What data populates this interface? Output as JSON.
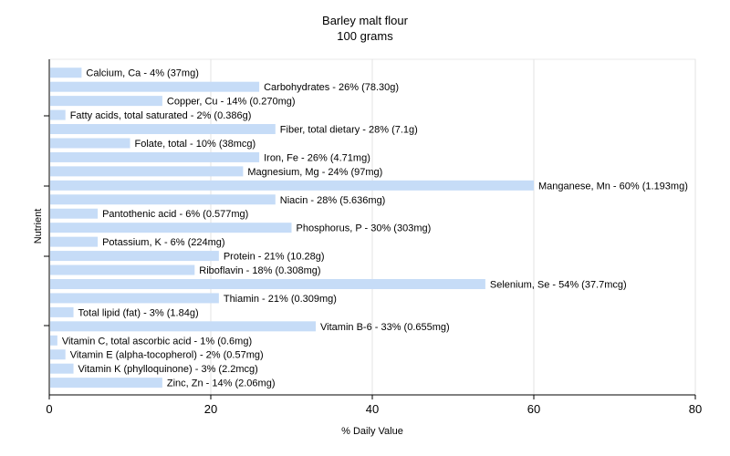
{
  "chart_data": {
    "type": "bar",
    "orientation": "horizontal",
    "title": "Barley malt flour",
    "subtitle": "100 grams",
    "xlabel": "% Daily Value",
    "ylabel": "Nutrient",
    "xlim": [
      0,
      80
    ],
    "xticks": [
      0,
      20,
      40,
      60,
      80
    ],
    "grid": true,
    "bar_color": "#c6dcf7",
    "categories": [
      "Calcium, Ca - 4% (37mg)",
      "Carbohydrates - 26% (78.30g)",
      "Copper, Cu - 14% (0.270mg)",
      "Fatty acids, total saturated - 2% (0.386g)",
      "Fiber, total dietary - 28% (7.1g)",
      "Folate, total - 10% (38mcg)",
      "Iron, Fe - 26% (4.71mg)",
      "Magnesium, Mg - 24% (97mg)",
      "Manganese, Mn - 60% (1.193mg)",
      "Niacin - 28% (5.636mg)",
      "Pantothenic acid - 6% (0.577mg)",
      "Phosphorus, P - 30% (303mg)",
      "Potassium, K - 6% (224mg)",
      "Protein - 21% (10.28g)",
      "Riboflavin - 18% (0.308mg)",
      "Selenium, Se - 54% (37.7mcg)",
      "Thiamin - 21% (0.309mg)",
      "Total lipid (fat) - 3% (1.84g)",
      "Vitamin B-6 - 33% (0.655mg)",
      "Vitamin C, total ascorbic acid - 1% (0.6mg)",
      "Vitamin E (alpha-tocopherol) - 2% (0.57mg)",
      "Vitamin K (phylloquinone) - 3% (2.2mcg)",
      "Zinc, Zn - 14% (2.06mg)"
    ],
    "values": [
      4,
      26,
      14,
      2,
      28,
      10,
      26,
      24,
      60,
      28,
      6,
      30,
      6,
      21,
      18,
      54,
      21,
      3,
      33,
      1,
      2,
      3,
      14
    ]
  }
}
